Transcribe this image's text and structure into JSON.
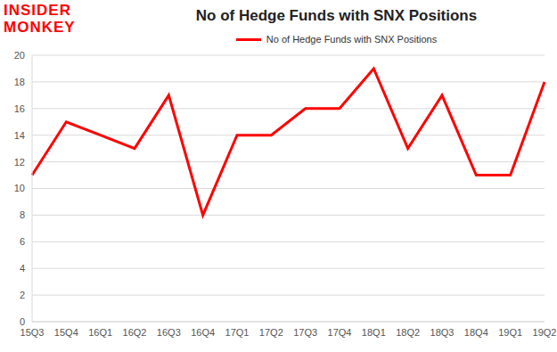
{
  "chart_data": {
    "type": "line",
    "title": "No of Hedge Funds with SNX Positions",
    "annotations": [
      "INSIDER",
      "MONKEY"
    ],
    "categories": [
      "15Q3",
      "15Q4",
      "16Q1",
      "16Q2",
      "16Q3",
      "16Q4",
      "17Q1",
      "17Q2",
      "17Q3",
      "17Q4",
      "18Q1",
      "18Q2",
      "18Q3",
      "18Q4",
      "19Q1",
      "19Q2"
    ],
    "series": [
      {
        "name": "No of Hedge Funds with SNX Positions",
        "color": "#ff0000",
        "values": [
          11,
          15,
          14,
          13,
          17,
          8,
          14,
          14,
          16,
          16,
          19,
          13,
          17,
          11,
          11,
          18
        ]
      }
    ],
    "ylim": [
      0,
      20
    ],
    "yticks": [
      0,
      2,
      4,
      6,
      8,
      10,
      12,
      14,
      16,
      18,
      20
    ],
    "grid": true,
    "legend": "top"
  }
}
